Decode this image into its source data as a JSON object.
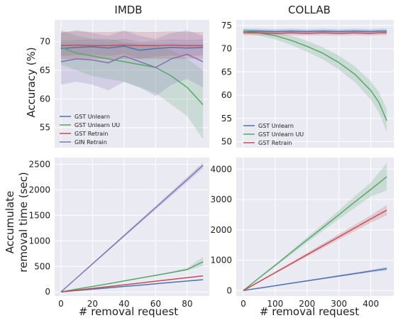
{
  "figure": {
    "colors": {
      "blue": "#4c72b0",
      "green": "#55a868",
      "red": "#c44e52",
      "purple": "#8172b2",
      "panel": "#eaeaf2",
      "grid": "#ffffff"
    },
    "legend_imdb": [
      "GST Unlearn",
      "GST Unlearn UU",
      "GST Retrain",
      "GIN Retrain"
    ],
    "legend_collab": [
      "GST Unlearn",
      "GST Unlearn UU",
      "GST Retrain"
    ]
  },
  "chart_data": [
    {
      "id": "imdb-acc",
      "type": "line",
      "title": "IMDB",
      "xlabel": "",
      "ylabel": "Accuracy (%)",
      "xlim": [
        -4,
        94
      ],
      "ylim": [
        51.5,
        73.8
      ],
      "grid": true,
      "legend_position": "bottom-left",
      "xticks": [
        0,
        20,
        40,
        60,
        80
      ],
      "xticklabels": [],
      "yticks": [
        55,
        60,
        65,
        70
      ],
      "yticklabels": [
        "55",
        "60",
        "65",
        "70"
      ],
      "x": [
        0,
        10,
        20,
        30,
        40,
        50,
        60,
        70,
        80,
        90
      ],
      "series": [
        {
          "name": "GST Unlearn",
          "color": "blue",
          "values": [
            68.8,
            69.0,
            69.1,
            68.9,
            69.2,
            68.5,
            68.8,
            69.0,
            68.9,
            69.0
          ],
          "band": [
            [
              67.5,
              70.2
            ],
            [
              67.6,
              70.3
            ],
            [
              67.7,
              70.4
            ],
            [
              67.5,
              70.2
            ],
            [
              67.8,
              70.5
            ],
            [
              67.0,
              70.0
            ],
            [
              67.4,
              70.2
            ],
            [
              67.6,
              70.4
            ],
            [
              67.5,
              70.3
            ],
            [
              67.6,
              70.4
            ]
          ]
        },
        {
          "name": "GST Unlearn UU",
          "color": "green",
          "values": [
            69.0,
            68.0,
            67.5,
            67.0,
            66.5,
            66.0,
            65.5,
            64.0,
            62.0,
            59.0
          ],
          "band": [
            [
              66.0,
              72.0
            ],
            [
              65.0,
              71.0
            ],
            [
              64.0,
              70.5
            ],
            [
              63.5,
              70.5
            ],
            [
              63.0,
              70.0
            ],
            [
              62.0,
              69.5
            ],
            [
              61.0,
              69.5
            ],
            [
              59.0,
              68.5
            ],
            [
              57.0,
              67.0
            ],
            [
              53.0,
              65.0
            ]
          ]
        },
        {
          "name": "GST Retrain",
          "color": "red",
          "values": [
            69.3,
            69.4,
            69.3,
            69.3,
            69.4,
            69.3,
            69.3,
            69.4,
            69.3,
            69.3
          ],
          "band": [
            [
              67.0,
              71.7
            ],
            [
              67.0,
              71.8
            ],
            [
              67.0,
              71.7
            ],
            [
              67.0,
              71.7
            ],
            [
              67.0,
              71.8
            ],
            [
              67.0,
              71.7
            ],
            [
              67.0,
              71.7
            ],
            [
              67.0,
              71.8
            ],
            [
              67.0,
              71.7
            ],
            [
              67.0,
              71.7
            ]
          ]
        },
        {
          "name": "GIN Retrain",
          "color": "purple",
          "values": [
            66.5,
            67.0,
            66.8,
            66.3,
            67.5,
            66.5,
            65.5,
            67.0,
            67.8,
            66.5
          ],
          "band": [
            [
              62.5,
              71.5
            ],
            [
              63.0,
              72.0
            ],
            [
              62.5,
              71.5
            ],
            [
              61.5,
              71.0
            ],
            [
              63.0,
              72.0
            ],
            [
              62.0,
              71.0
            ],
            [
              60.5,
              70.5
            ],
            [
              62.5,
              71.5
            ],
            [
              63.5,
              72.0
            ],
            [
              62.0,
              71.0
            ]
          ]
        }
      ]
    },
    {
      "id": "collab-acc",
      "type": "line",
      "title": "COLLAB",
      "xlabel": "",
      "ylabel": "",
      "xlim": [
        -22,
        472
      ],
      "ylim": [
        48.7,
        76.2
      ],
      "grid": true,
      "legend_position": "bottom-left",
      "xticks": [
        0,
        100,
        200,
        300,
        400
      ],
      "xticklabels": [],
      "yticks": [
        50,
        55,
        60,
        65,
        70,
        75
      ],
      "yticklabels": [
        "50",
        "55",
        "60",
        "65",
        "70",
        "75"
      ],
      "x": [
        0,
        50,
        100,
        150,
        200,
        250,
        300,
        350,
        400,
        425,
        450
      ],
      "series": [
        {
          "name": "GST Unlearn",
          "color": "blue",
          "values": [
            73.8,
            73.8,
            73.7,
            73.8,
            73.7,
            73.8,
            73.7,
            73.8,
            73.7,
            73.8,
            73.8
          ],
          "band": [
            [
              73.3,
              74.3
            ],
            [
              73.3,
              74.3
            ],
            [
              73.2,
              74.2
            ],
            [
              73.3,
              74.3
            ],
            [
              73.2,
              74.2
            ],
            [
              73.3,
              74.3
            ],
            [
              73.2,
              74.2
            ],
            [
              73.3,
              74.3
            ],
            [
              73.2,
              74.2
            ],
            [
              73.3,
              74.3
            ],
            [
              73.3,
              74.3
            ]
          ]
        },
        {
          "name": "GST Unlearn UU",
          "color": "green",
          "values": [
            73.8,
            73.4,
            72.8,
            71.8,
            70.5,
            69.0,
            67.0,
            64.5,
            61.0,
            58.5,
            54.5
          ],
          "band": [
            [
              73.3,
              74.3
            ],
            [
              72.8,
              74.0
            ],
            [
              72.0,
              73.6
            ],
            [
              70.8,
              72.8
            ],
            [
              69.3,
              71.7
            ],
            [
              67.7,
              70.3
            ],
            [
              65.5,
              68.5
            ],
            [
              62.8,
              66.2
            ],
            [
              59.0,
              63.0
            ],
            [
              56.3,
              60.7
            ],
            [
              52.0,
              57.0
            ]
          ]
        },
        {
          "name": "GST Retrain",
          "color": "red",
          "values": [
            73.4,
            73.4,
            73.3,
            73.4,
            73.3,
            73.4,
            73.3,
            73.4,
            73.3,
            73.4,
            73.4
          ],
          "band": [
            [
              72.9,
              73.9
            ],
            [
              72.9,
              73.9
            ],
            [
              72.8,
              73.8
            ],
            [
              72.9,
              73.9
            ],
            [
              72.8,
              73.8
            ],
            [
              72.9,
              73.9
            ],
            [
              72.8,
              73.8
            ],
            [
              72.9,
              73.9
            ],
            [
              72.8,
              73.8
            ],
            [
              72.9,
              73.9
            ],
            [
              72.9,
              73.9
            ]
          ]
        }
      ]
    },
    {
      "id": "imdb-time",
      "type": "line",
      "title": "",
      "xlabel": "# removal request",
      "ylabel": "Accumulate removal time (sec)",
      "xlim": [
        -4,
        94
      ],
      "ylim": [
        -80,
        2630
      ],
      "grid": true,
      "xticks": [
        0,
        20,
        40,
        60,
        80
      ],
      "xticklabels": [
        "0",
        "20",
        "40",
        "60",
        "80"
      ],
      "yticks": [
        0,
        500,
        1000,
        1500,
        2000,
        2500
      ],
      "yticklabels": [
        "0",
        "500",
        "1000",
        "1500",
        "2000",
        "2500"
      ],
      "x": [
        0,
        10,
        20,
        30,
        40,
        50,
        60,
        70,
        80,
        90
      ],
      "series": [
        {
          "name": "GST Unlearn",
          "color": "blue",
          "values": [
            0,
            27,
            53,
            80,
            107,
            133,
            160,
            187,
            213,
            240
          ]
        },
        {
          "name": "GST Unlearn UU",
          "color": "green",
          "values": [
            0,
            55,
            108,
            160,
            215,
            270,
            325,
            380,
            440,
            590
          ],
          "band": [
            [
              0,
              0
            ],
            [
              52,
              58
            ],
            [
              104,
              112
            ],
            [
              155,
              165
            ],
            [
              208,
              222
            ],
            [
              262,
              278
            ],
            [
              315,
              335
            ],
            [
              368,
              392
            ],
            [
              420,
              470
            ],
            [
              510,
              680
            ]
          ]
        },
        {
          "name": "GST Retrain",
          "color": "red",
          "values": [
            0,
            35,
            70,
            105,
            140,
            175,
            210,
            245,
            280,
            315
          ]
        },
        {
          "name": "GIN Retrain",
          "color": "purple",
          "values": [
            0,
            275,
            550,
            825,
            1100,
            1375,
            1650,
            1925,
            2200,
            2480
          ],
          "band": [
            [
              0,
              0
            ],
            [
              268,
              282
            ],
            [
              537,
              563
            ],
            [
              805,
              845
            ],
            [
              1075,
              1125
            ],
            [
              1343,
              1407
            ],
            [
              1612,
              1688
            ],
            [
              1880,
              1970
            ],
            [
              2148,
              2252
            ],
            [
              2420,
              2540
            ]
          ]
        }
      ]
    },
    {
      "id": "collab-time",
      "type": "line",
      "title": "",
      "xlabel": "# removal request",
      "ylabel": "",
      "xlim": [
        -22,
        472
      ],
      "ylim": [
        -180,
        4380
      ],
      "grid": true,
      "xticks": [
        0,
        100,
        200,
        300,
        400
      ],
      "xticklabels": [
        "0",
        "100",
        "200",
        "300",
        "400"
      ],
      "yticks": [
        0,
        1000,
        2000,
        3000,
        4000
      ],
      "yticklabels": [
        "0",
        "1000",
        "2000",
        "3000",
        "4000"
      ],
      "x": [
        0,
        50,
        100,
        150,
        200,
        250,
        300,
        350,
        400,
        450
      ],
      "series": [
        {
          "name": "GST Unlearn",
          "color": "blue",
          "values": [
            0,
            80,
            160,
            240,
            320,
            400,
            480,
            560,
            640,
            720
          ],
          "band": [
            [
              0,
              0
            ],
            [
              75,
              85
            ],
            [
              150,
              170
            ],
            [
              225,
              255
            ],
            [
              300,
              340
            ],
            [
              375,
              425
            ],
            [
              450,
              510
            ],
            [
              525,
              595
            ],
            [
              600,
              680
            ],
            [
              660,
              780
            ]
          ]
        },
        {
          "name": "GST Unlearn UU",
          "color": "green",
          "values": [
            0,
            420,
            830,
            1250,
            1670,
            2080,
            2500,
            2920,
            3330,
            3750
          ],
          "band": [
            [
              0,
              0
            ],
            [
              400,
              440
            ],
            [
              790,
              870
            ],
            [
              1190,
              1310
            ],
            [
              1580,
              1760
            ],
            [
              1970,
              2190
            ],
            [
              2350,
              2650
            ],
            [
              2730,
              3110
            ],
            [
              3100,
              3560
            ],
            [
              3300,
              4200
            ]
          ]
        },
        {
          "name": "GST Retrain",
          "color": "red",
          "values": [
            0,
            295,
            590,
            885,
            1180,
            1475,
            1770,
            2065,
            2360,
            2650
          ],
          "band": [
            [
              0,
              0
            ],
            [
              280,
              310
            ],
            [
              560,
              620
            ],
            [
              840,
              930
            ],
            [
              1120,
              1240
            ],
            [
              1400,
              1550
            ],
            [
              1680,
              1860
            ],
            [
              1960,
              2170
            ],
            [
              2240,
              2480
            ],
            [
              2480,
              2820
            ]
          ]
        }
      ]
    }
  ]
}
